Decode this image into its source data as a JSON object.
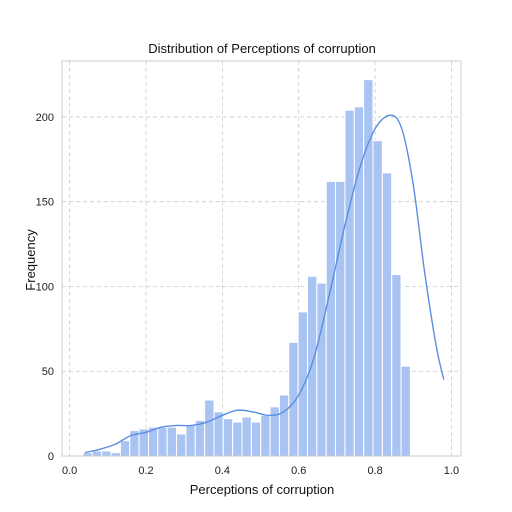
{
  "chart_data": {
    "type": "bar",
    "title": "Distribution of Perceptions of corruption",
    "xlabel": "Perceptions of corruption",
    "ylabel": "Frequency",
    "xlim": [
      0.0,
      1.0
    ],
    "ylim": [
      0,
      230
    ],
    "xticks": [
      0.0,
      0.2,
      0.4,
      0.6,
      0.8,
      1.0
    ],
    "xtick_labels": [
      "0.0",
      "0.2",
      "0.4",
      "0.6",
      "0.8",
      "1.0"
    ],
    "yticks": [
      0,
      50,
      100,
      150,
      200
    ],
    "ytick_labels": [
      "0",
      "50",
      "100",
      "150",
      "200"
    ],
    "grid": true,
    "bin_start": 0.035,
    "bin_width": 0.0245,
    "values": [
      2,
      3,
      3,
      2,
      9,
      15,
      16,
      17,
      17,
      17,
      13,
      18,
      21,
      33,
      26,
      22,
      20,
      23,
      20,
      24,
      29,
      36,
      67,
      85,
      106,
      102,
      162,
      162,
      204,
      206,
      222,
      186,
      167,
      107,
      53
    ],
    "kde": {
      "x": [
        0.04,
        0.08,
        0.12,
        0.16,
        0.2,
        0.24,
        0.28,
        0.32,
        0.36,
        0.4,
        0.44,
        0.48,
        0.52,
        0.56,
        0.6,
        0.64,
        0.68,
        0.72,
        0.76,
        0.8,
        0.84,
        0.87,
        0.9,
        0.93,
        0.96,
        0.98
      ],
      "y": [
        2,
        4,
        7,
        12,
        14,
        17,
        18,
        18,
        20,
        24,
        27,
        26,
        24,
        26,
        36,
        58,
        95,
        135,
        170,
        193,
        201,
        193,
        160,
        108,
        65,
        45
      ]
    },
    "colors": {
      "bar": "#a9c4f2",
      "bar_edge": "#ffffff",
      "kde": "#5b8ee0",
      "grid": "#cccccc",
      "frame": "#cccccc"
    }
  }
}
